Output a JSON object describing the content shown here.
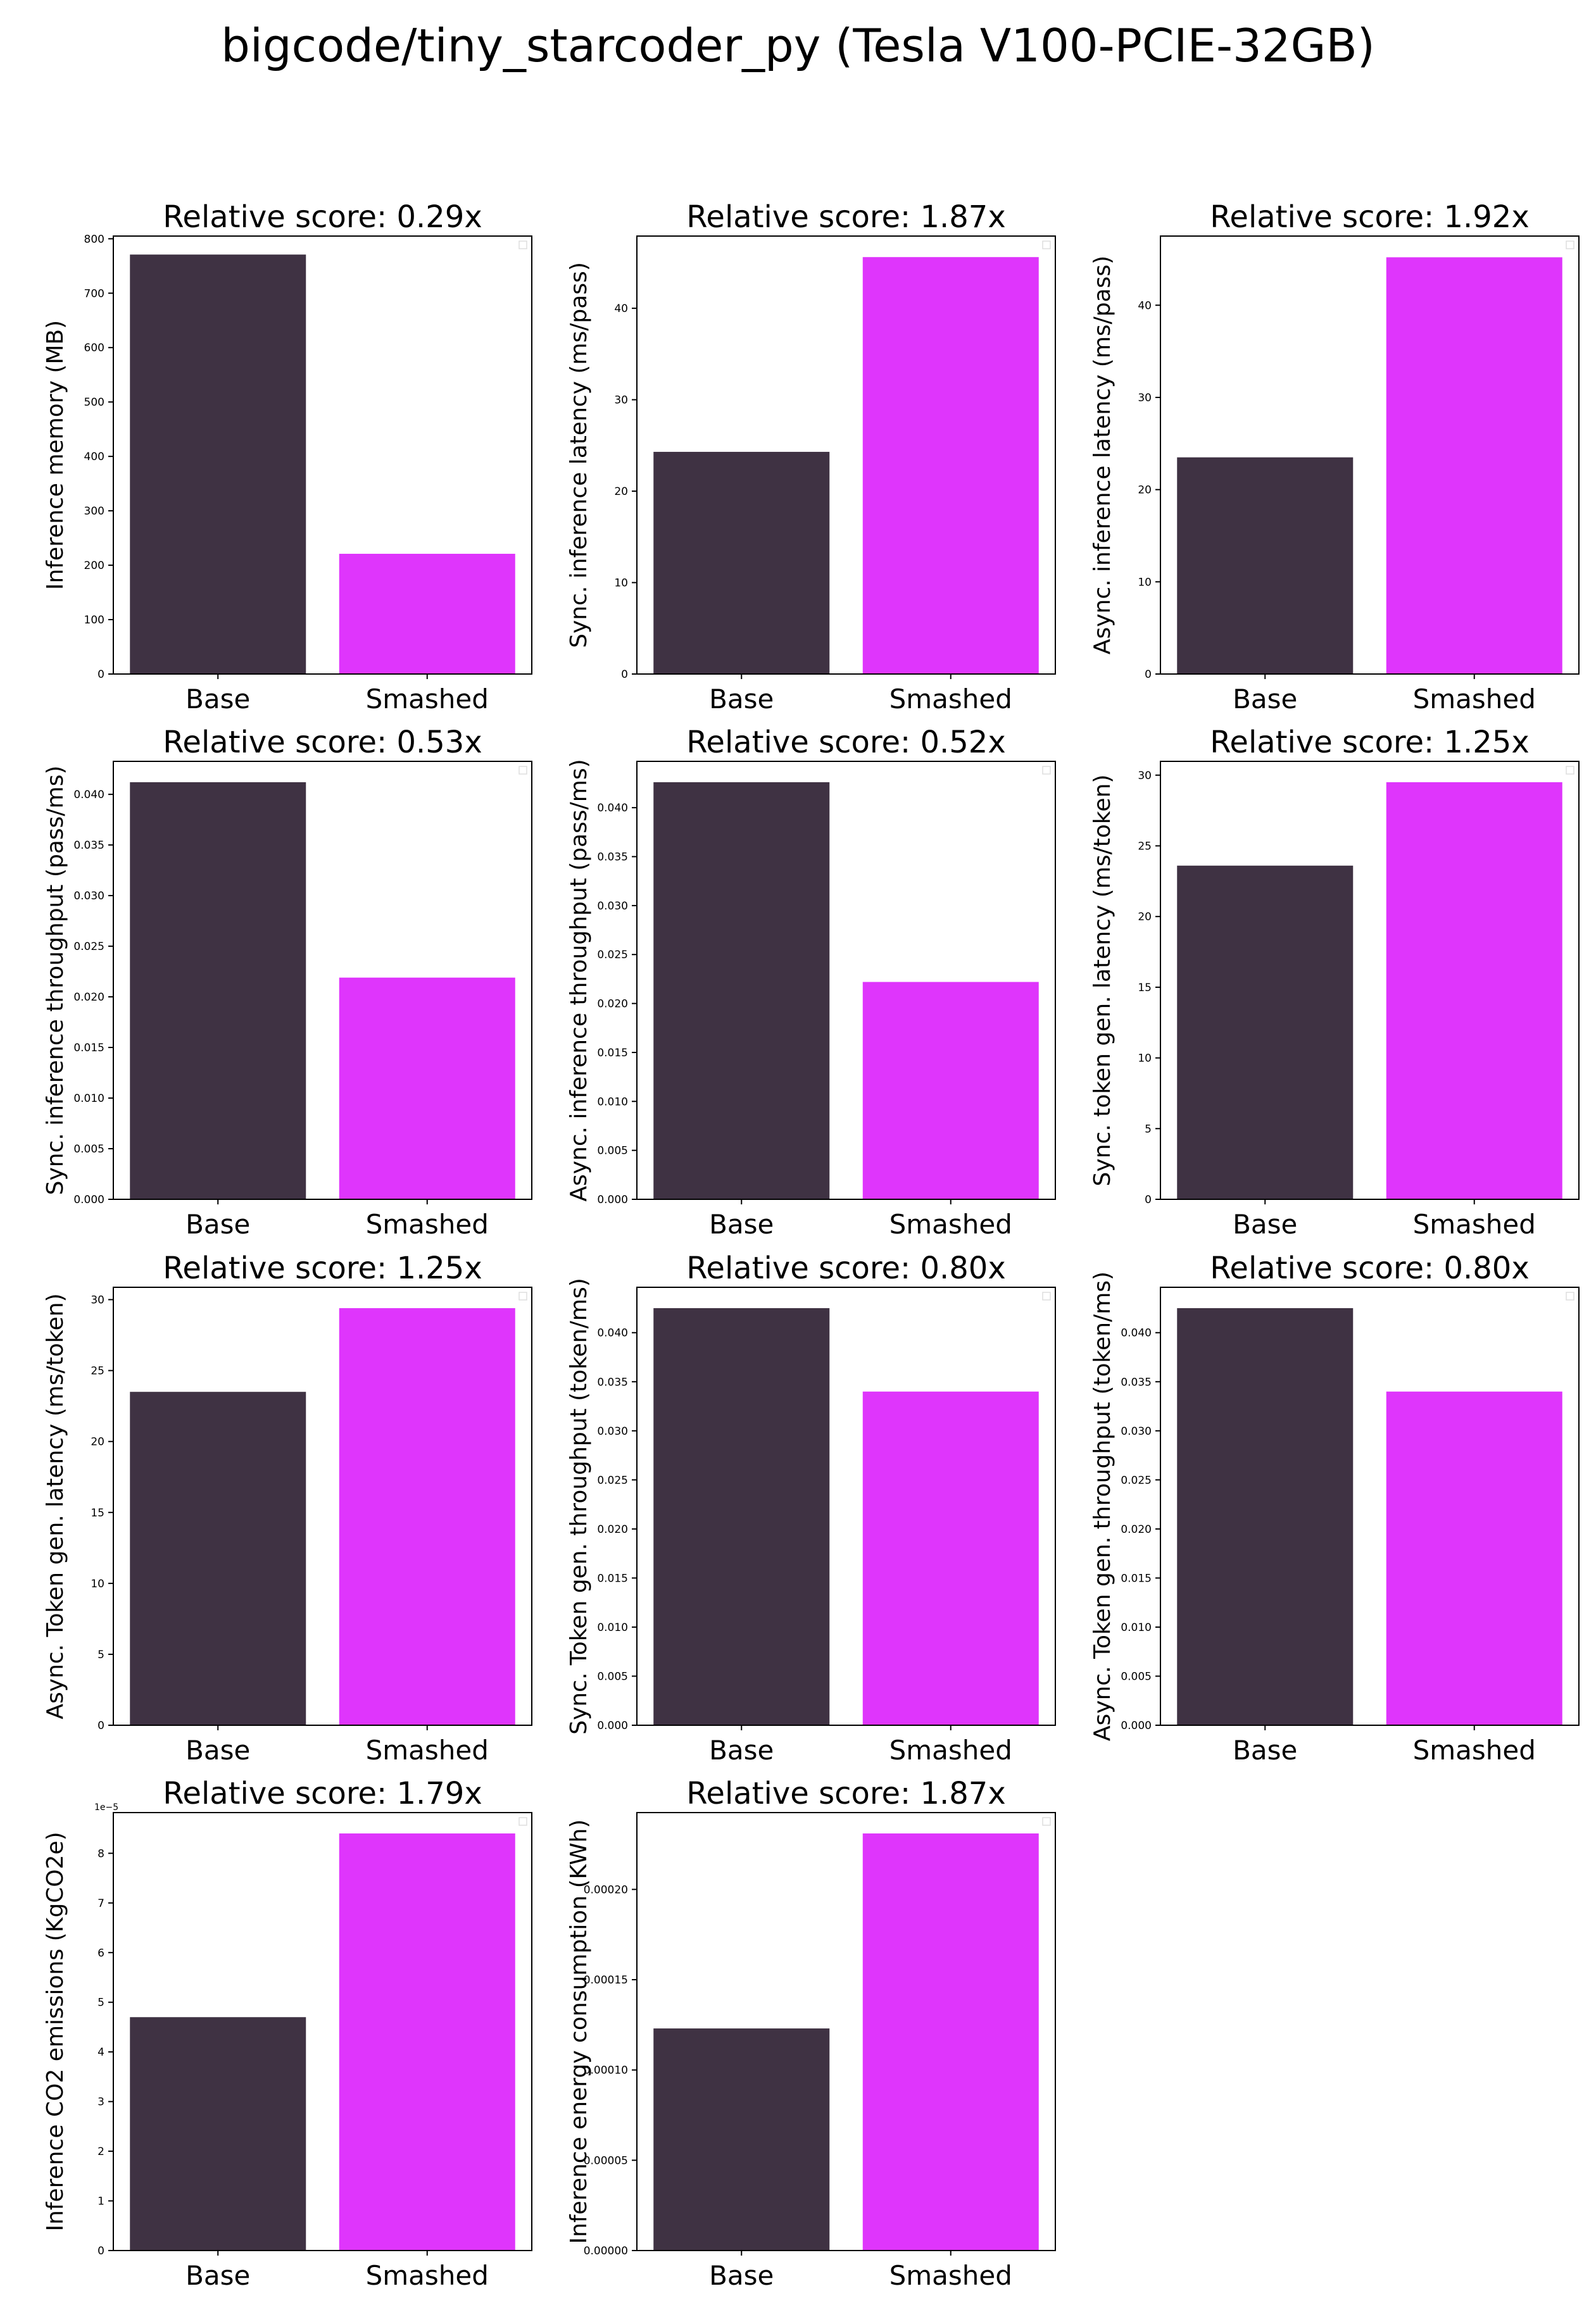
{
  "figure": {
    "title": "bigcode/tiny_starcoder_py (Tesla V100-PCIE-32GB)"
  },
  "colors": {
    "base": "#3f3243",
    "smashed": "#df35fc"
  },
  "chart_data": [
    {
      "type": "bar",
      "title": "Relative score: 0.29x",
      "ylabel": "Inference memory (MB)",
      "categories": [
        "Base",
        "Smashed"
      ],
      "values": [
        771,
        221
      ],
      "ylim": [
        0,
        805
      ],
      "ticks": [
        0,
        100,
        200,
        300,
        400,
        500,
        600,
        700,
        800
      ],
      "tick_labels": [
        "0",
        "100",
        "200",
        "300",
        "400",
        "500",
        "600",
        "700",
        "800"
      ],
      "offset_text": ""
    },
    {
      "type": "bar",
      "title": "Relative score: 1.87x",
      "ylabel": "Sync. inference latency (ms/pass)",
      "categories": [
        "Base",
        "Smashed"
      ],
      "values": [
        24.3,
        45.6
      ],
      "ylim": [
        0,
        47.9
      ],
      "ticks": [
        0,
        10,
        20,
        30,
        40
      ],
      "tick_labels": [
        "0",
        "10",
        "20",
        "30",
        "40"
      ],
      "offset_text": ""
    },
    {
      "type": "bar",
      "title": "Relative score: 1.92x",
      "ylabel": "Async. inference latency (ms/pass)",
      "categories": [
        "Base",
        "Smashed"
      ],
      "values": [
        23.5,
        45.2
      ],
      "ylim": [
        0,
        47.5
      ],
      "ticks": [
        0,
        10,
        20,
        30,
        40
      ],
      "tick_labels": [
        "0",
        "10",
        "20",
        "30",
        "40"
      ],
      "offset_text": ""
    },
    {
      "type": "bar",
      "title": "Relative score: 0.53x",
      "ylabel": "Sync. inference throughput (pass/ms)",
      "categories": [
        "Base",
        "Smashed"
      ],
      "values": [
        0.0412,
        0.0219
      ],
      "ylim": [
        0,
        0.04326
      ],
      "ticks": [
        0,
        0.005,
        0.01,
        0.015,
        0.02,
        0.025,
        0.03,
        0.035,
        0.04
      ],
      "tick_labels": [
        "0.000",
        "0.005",
        "0.010",
        "0.015",
        "0.020",
        "0.025",
        "0.030",
        "0.035",
        "0.040"
      ],
      "offset_text": ""
    },
    {
      "type": "bar",
      "title": "Relative score: 0.52x",
      "ylabel": "Async. inference throughput (pass/ms)",
      "categories": [
        "Base",
        "Smashed"
      ],
      "values": [
        0.0426,
        0.0222
      ],
      "ylim": [
        0,
        0.04473
      ],
      "ticks": [
        0,
        0.005,
        0.01,
        0.015,
        0.02,
        0.025,
        0.03,
        0.035,
        0.04
      ],
      "tick_labels": [
        "0.000",
        "0.005",
        "0.010",
        "0.015",
        "0.020",
        "0.025",
        "0.030",
        "0.035",
        "0.040"
      ],
      "offset_text": ""
    },
    {
      "type": "bar",
      "title": "Relative score: 1.25x",
      "ylabel": "Sync. token gen. latency (ms/token)",
      "categories": [
        "Base",
        "Smashed"
      ],
      "values": [
        23.6,
        29.5
      ],
      "ylim": [
        0,
        30.975
      ],
      "ticks": [
        0,
        5,
        10,
        15,
        20,
        25,
        30
      ],
      "tick_labels": [
        "0",
        "5",
        "10",
        "15",
        "20",
        "25",
        "30"
      ],
      "offset_text": ""
    },
    {
      "type": "bar",
      "title": "Relative score: 1.25x",
      "ylabel": "Async. Token gen. latency (ms/token)",
      "categories": [
        "Base",
        "Smashed"
      ],
      "values": [
        23.5,
        29.4
      ],
      "ylim": [
        0,
        30.87
      ],
      "ticks": [
        0,
        5,
        10,
        15,
        20,
        25,
        30
      ],
      "tick_labels": [
        "0",
        "5",
        "10",
        "15",
        "20",
        "25",
        "30"
      ],
      "offset_text": ""
    },
    {
      "type": "bar",
      "title": "Relative score: 0.80x",
      "ylabel": "Sync. Token gen. throughput (token/ms)",
      "categories": [
        "Base",
        "Smashed"
      ],
      "values": [
        0.0425,
        0.034
      ],
      "ylim": [
        0,
        0.044625
      ],
      "ticks": [
        0,
        0.005,
        0.01,
        0.015,
        0.02,
        0.025,
        0.03,
        0.035,
        0.04
      ],
      "tick_labels": [
        "0.000",
        "0.005",
        "0.010",
        "0.015",
        "0.020",
        "0.025",
        "0.030",
        "0.035",
        "0.040"
      ],
      "offset_text": ""
    },
    {
      "type": "bar",
      "title": "Relative score: 0.80x",
      "ylabel": "Async. Token gen. throughput (token/ms)",
      "categories": [
        "Base",
        "Smashed"
      ],
      "values": [
        0.0425,
        0.034
      ],
      "ylim": [
        0,
        0.044625
      ],
      "ticks": [
        0,
        0.005,
        0.01,
        0.015,
        0.02,
        0.025,
        0.03,
        0.035,
        0.04
      ],
      "tick_labels": [
        "0.000",
        "0.005",
        "0.010",
        "0.015",
        "0.020",
        "0.025",
        "0.030",
        "0.035",
        "0.040"
      ],
      "offset_text": ""
    },
    {
      "type": "bar",
      "title": "Relative score: 1.79x",
      "ylabel": "Inference CO2 emissions (KgCO2e)",
      "categories": [
        "Base",
        "Smashed"
      ],
      "values": [
        4.7e-05,
        8.4e-05
      ],
      "ylim": [
        0,
        8.82e-05
      ],
      "ticks": [
        0,
        1e-05,
        2e-05,
        3e-05,
        4e-05,
        5e-05,
        6e-05,
        7e-05,
        8e-05
      ],
      "tick_labels": [
        "0",
        "1",
        "2",
        "3",
        "4",
        "5",
        "6",
        "7",
        "8"
      ],
      "offset_text": "1e−5"
    },
    {
      "type": "bar",
      "title": "Relative score: 1.87x",
      "ylabel": "Inference energy consumption (KWh)",
      "categories": [
        "Base",
        "Smashed"
      ],
      "values": [
        0.000123,
        0.000231
      ],
      "ylim": [
        0,
        0.00024255
      ],
      "ticks": [
        0,
        5e-05,
        0.0001,
        0.00015,
        0.0002
      ],
      "tick_labels": [
        "0.00000",
        "0.00005",
        "0.00010",
        "0.00015",
        "0.00020"
      ],
      "offset_text": ""
    }
  ]
}
